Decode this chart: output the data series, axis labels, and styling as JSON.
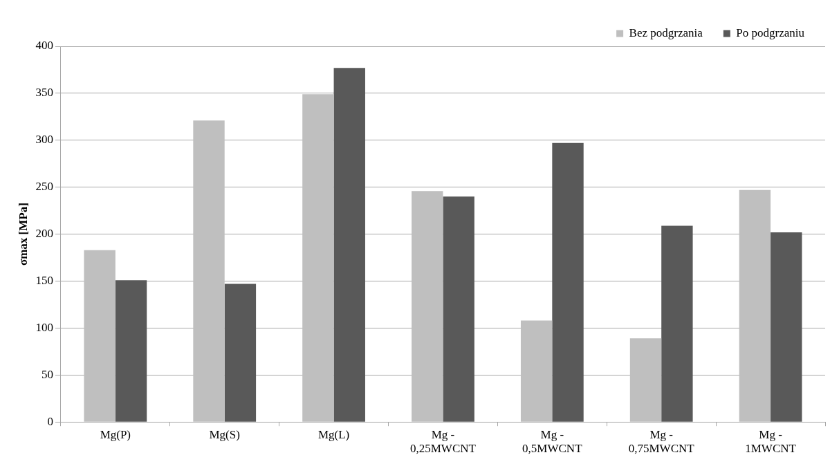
{
  "chart_data": {
    "type": "bar",
    "ylabel": "σmax [MPa]",
    "categories": [
      "Mg(P)",
      "Mg(S)",
      "Mg(L)",
      "Mg -\n0,25MWCNT",
      "Mg -\n0,5MWCNT",
      "Mg -\n0,75MWCNT",
      "Mg -\n1MWCNT"
    ],
    "series": [
      {
        "name": "Bez podgrzania",
        "color": "#bfbfbf",
        "values": [
          183,
          321,
          349,
          246,
          108,
          89,
          247
        ]
      },
      {
        "name": "Po podgrzaniu",
        "color": "#595959",
        "values": [
          151,
          147,
          377,
          240,
          297,
          209,
          202
        ]
      }
    ],
    "ylim": [
      0,
      400
    ],
    "yticks": [
      0,
      50,
      100,
      150,
      200,
      250,
      300,
      350,
      400
    ],
    "grid": "y",
    "legend": "top right"
  }
}
